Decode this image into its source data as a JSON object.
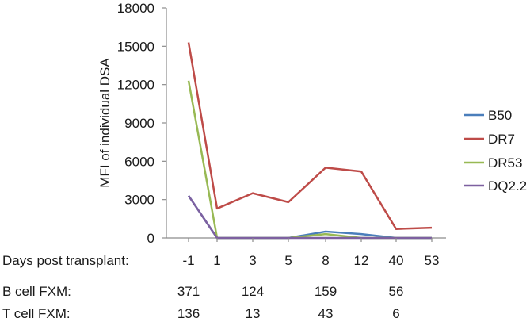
{
  "chart_data": {
    "type": "line",
    "title": "",
    "ylabel": "MFI of individual DSA",
    "ylim": [
      0,
      18000
    ],
    "yticks": [
      0,
      3000,
      6000,
      9000,
      12000,
      15000,
      18000
    ],
    "x_row_label": "Days post transplant:",
    "categories": [
      "-1",
      "1",
      "3",
      "5",
      "8",
      "12",
      "40",
      "53"
    ],
    "series": [
      {
        "name": "B50",
        "color": "#4a7ebb",
        "values": [
          3300,
          0,
          0,
          0,
          500,
          300,
          0,
          0
        ]
      },
      {
        "name": "DR7",
        "color": "#be4b48",
        "values": [
          15300,
          2300,
          3500,
          2800,
          5500,
          5200,
          700,
          800
        ]
      },
      {
        "name": "DR53",
        "color": "#98b954",
        "values": [
          12300,
          0,
          0,
          0,
          300,
          0,
          0,
          0
        ]
      },
      {
        "name": "DQ2.2",
        "color": "#7d60a0",
        "values": [
          3300,
          0,
          0,
          0,
          0,
          0,
          0,
          0
        ]
      }
    ],
    "legend_position": "right",
    "grid": false,
    "fxm_rows": [
      {
        "label": "B cell FXM:",
        "entries": [
          {
            "category": "-1",
            "value": "371"
          },
          {
            "category": "3",
            "value": "124"
          },
          {
            "category": "8",
            "value": "159"
          },
          {
            "category": "40",
            "value": "56"
          }
        ]
      },
      {
        "label": "T cell FXM:",
        "entries": [
          {
            "category": "-1",
            "value": "136"
          },
          {
            "category": "3",
            "value": "13"
          },
          {
            "category": "8",
            "value": "43"
          },
          {
            "category": "40",
            "value": "6"
          }
        ]
      }
    ]
  }
}
